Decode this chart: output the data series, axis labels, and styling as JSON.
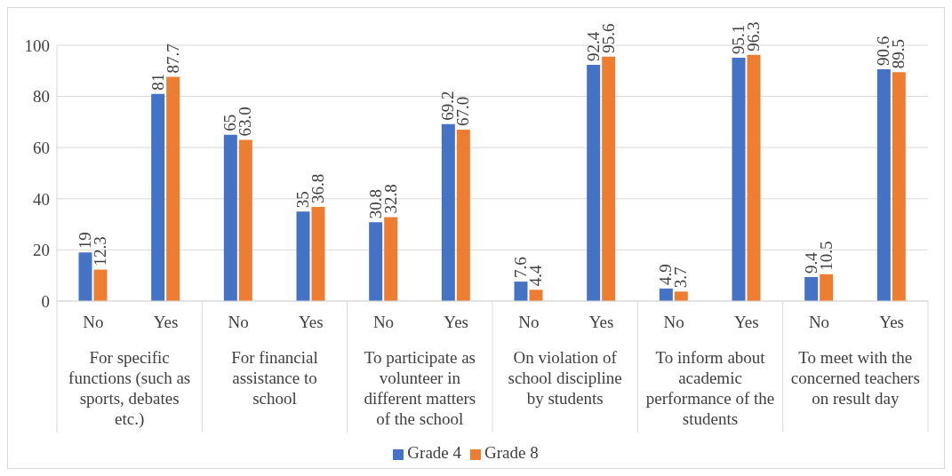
{
  "chart_data": {
    "type": "bar",
    "categories": [
      "No",
      "Yes",
      "No",
      "Yes",
      "No",
      "Yes",
      "No",
      "Yes",
      "No",
      "Yes",
      "No",
      "Yes"
    ],
    "annotations": [
      "For specific functions (such as sports, debates etc.)",
      "For financial assistance to school",
      "To participate as volunteer in different matters of the school",
      "On violation of school discipline by students",
      "To inform about academic performance of the students",
      "To meet with the concerned teachers on result day"
    ],
    "series": [
      {
        "name": "Grade 4",
        "color": "#4472c4",
        "values": [
          19,
          81,
          65,
          35,
          30.8,
          69.2,
          7.6,
          92.4,
          4.9,
          95.1,
          9.4,
          90.6
        ],
        "value_labels": [
          "19",
          "81",
          "65",
          "35",
          "30.8",
          "69.2",
          "7.6",
          "92.4",
          "4.9",
          "95.1",
          "9.4",
          "90.6"
        ]
      },
      {
        "name": "Grade 8",
        "color": "#ed7d31",
        "values": [
          12.3,
          87.7,
          63.0,
          36.8,
          32.8,
          67.0,
          4.4,
          95.6,
          3.7,
          96.3,
          10.5,
          89.5
        ],
        "value_labels": [
          "12.3",
          "87.7",
          "63.0",
          "36.8",
          "32.8",
          "67.0",
          "4.4",
          "95.6",
          "3.7",
          "96.3",
          "10.5",
          "89.5"
        ]
      }
    ],
    "ylim": [
      0,
      100
    ],
    "yticks": [
      0,
      20,
      40,
      60,
      80,
      100
    ],
    "grid": "y",
    "legend": "bottom"
  }
}
